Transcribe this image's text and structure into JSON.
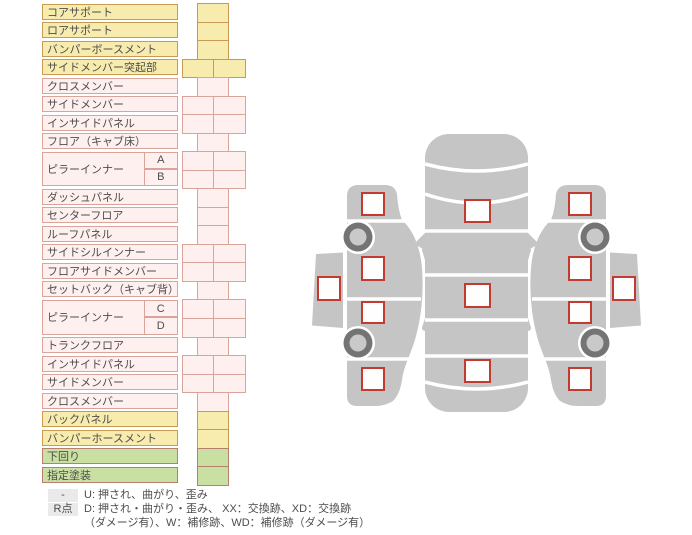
{
  "colors": {
    "yellow-bg": "#f7ecae",
    "yellow-border": "#c79b52",
    "pink-bg": "#fdf0ef",
    "pink-border": "#daa49b",
    "green-bg": "#cadfa2",
    "green-border": "#b5806e",
    "text": "#4d4d4d",
    "car-gray": "#c5c5c5",
    "square-border": "#c43a30",
    "wheel-dark": "#747474",
    "wheel-light": "#c9c9c9",
    "badge-bg": "#eaeaea"
  },
  "table": {
    "rows": [
      {
        "label": "コアサポート",
        "color": "yellow",
        "cells": 1
      },
      {
        "label": "ロアサポート",
        "color": "yellow",
        "cells": 1
      },
      {
        "label": "バンパーボースメント",
        "color": "yellow",
        "cells": 1
      },
      {
        "label": "サイドメンバー突起部",
        "color": "yellow",
        "cells": 2
      },
      {
        "label": "クロスメンバー",
        "color": "pink",
        "cells": 1
      },
      {
        "label": "サイドメンバー",
        "color": "pink",
        "cells": 2
      },
      {
        "label": "インサイドパネル",
        "color": "pink",
        "cells": 2
      },
      {
        "label": "フロア（キャブ床）",
        "color": "pink",
        "cells": 1
      },
      {
        "label": "ピラーインナー",
        "subs": [
          "A",
          "B"
        ],
        "color": "pink",
        "cells": 2
      },
      {
        "label": "ダッシュパネル",
        "color": "pink",
        "cells": 1
      },
      {
        "label": "センターフロア",
        "color": "pink",
        "cells": 1
      },
      {
        "label": "ルーフパネル",
        "color": "pink",
        "cells": 1
      },
      {
        "label": "サイドシルインナー",
        "color": "pink",
        "cells": 2
      },
      {
        "label": "フロアサイドメンバー",
        "color": "pink",
        "cells": 2
      },
      {
        "label": "セットバック（キャブ背）",
        "color": "pink",
        "cells": 1
      },
      {
        "label": "ピラーインナー",
        "subs": [
          "C",
          "D"
        ],
        "color": "pink",
        "cells": 2
      },
      {
        "label": "トランクフロア",
        "color": "pink",
        "cells": 1
      },
      {
        "label": "インサイドパネル",
        "color": "pink",
        "cells": 2
      },
      {
        "label": "サイドメンバー",
        "color": "pink",
        "cells": 2
      },
      {
        "label": "クロスメンバー",
        "color": "pink",
        "cells": 1
      },
      {
        "label": "バックパネル",
        "color": "yellow",
        "cells": 1
      },
      {
        "label": "バンパーホースメント",
        "color": "yellow",
        "cells": 1
      },
      {
        "label": "下回り",
        "color": "green",
        "cells": 1
      },
      {
        "label": "指定塗装",
        "color": "green",
        "cells": 1
      }
    ]
  },
  "legend": {
    "rows": [
      {
        "badge": "-",
        "text": "U: 押され、曲がり、歪み"
      },
      {
        "badge": "R点",
        "text": "D: 押され・曲がり・歪み、 XX：交換跡、XD：交換跡",
        "text2": "（ダメージ有）、W：補修跡、WD：補修跡（ダメージ有）"
      }
    ]
  }
}
